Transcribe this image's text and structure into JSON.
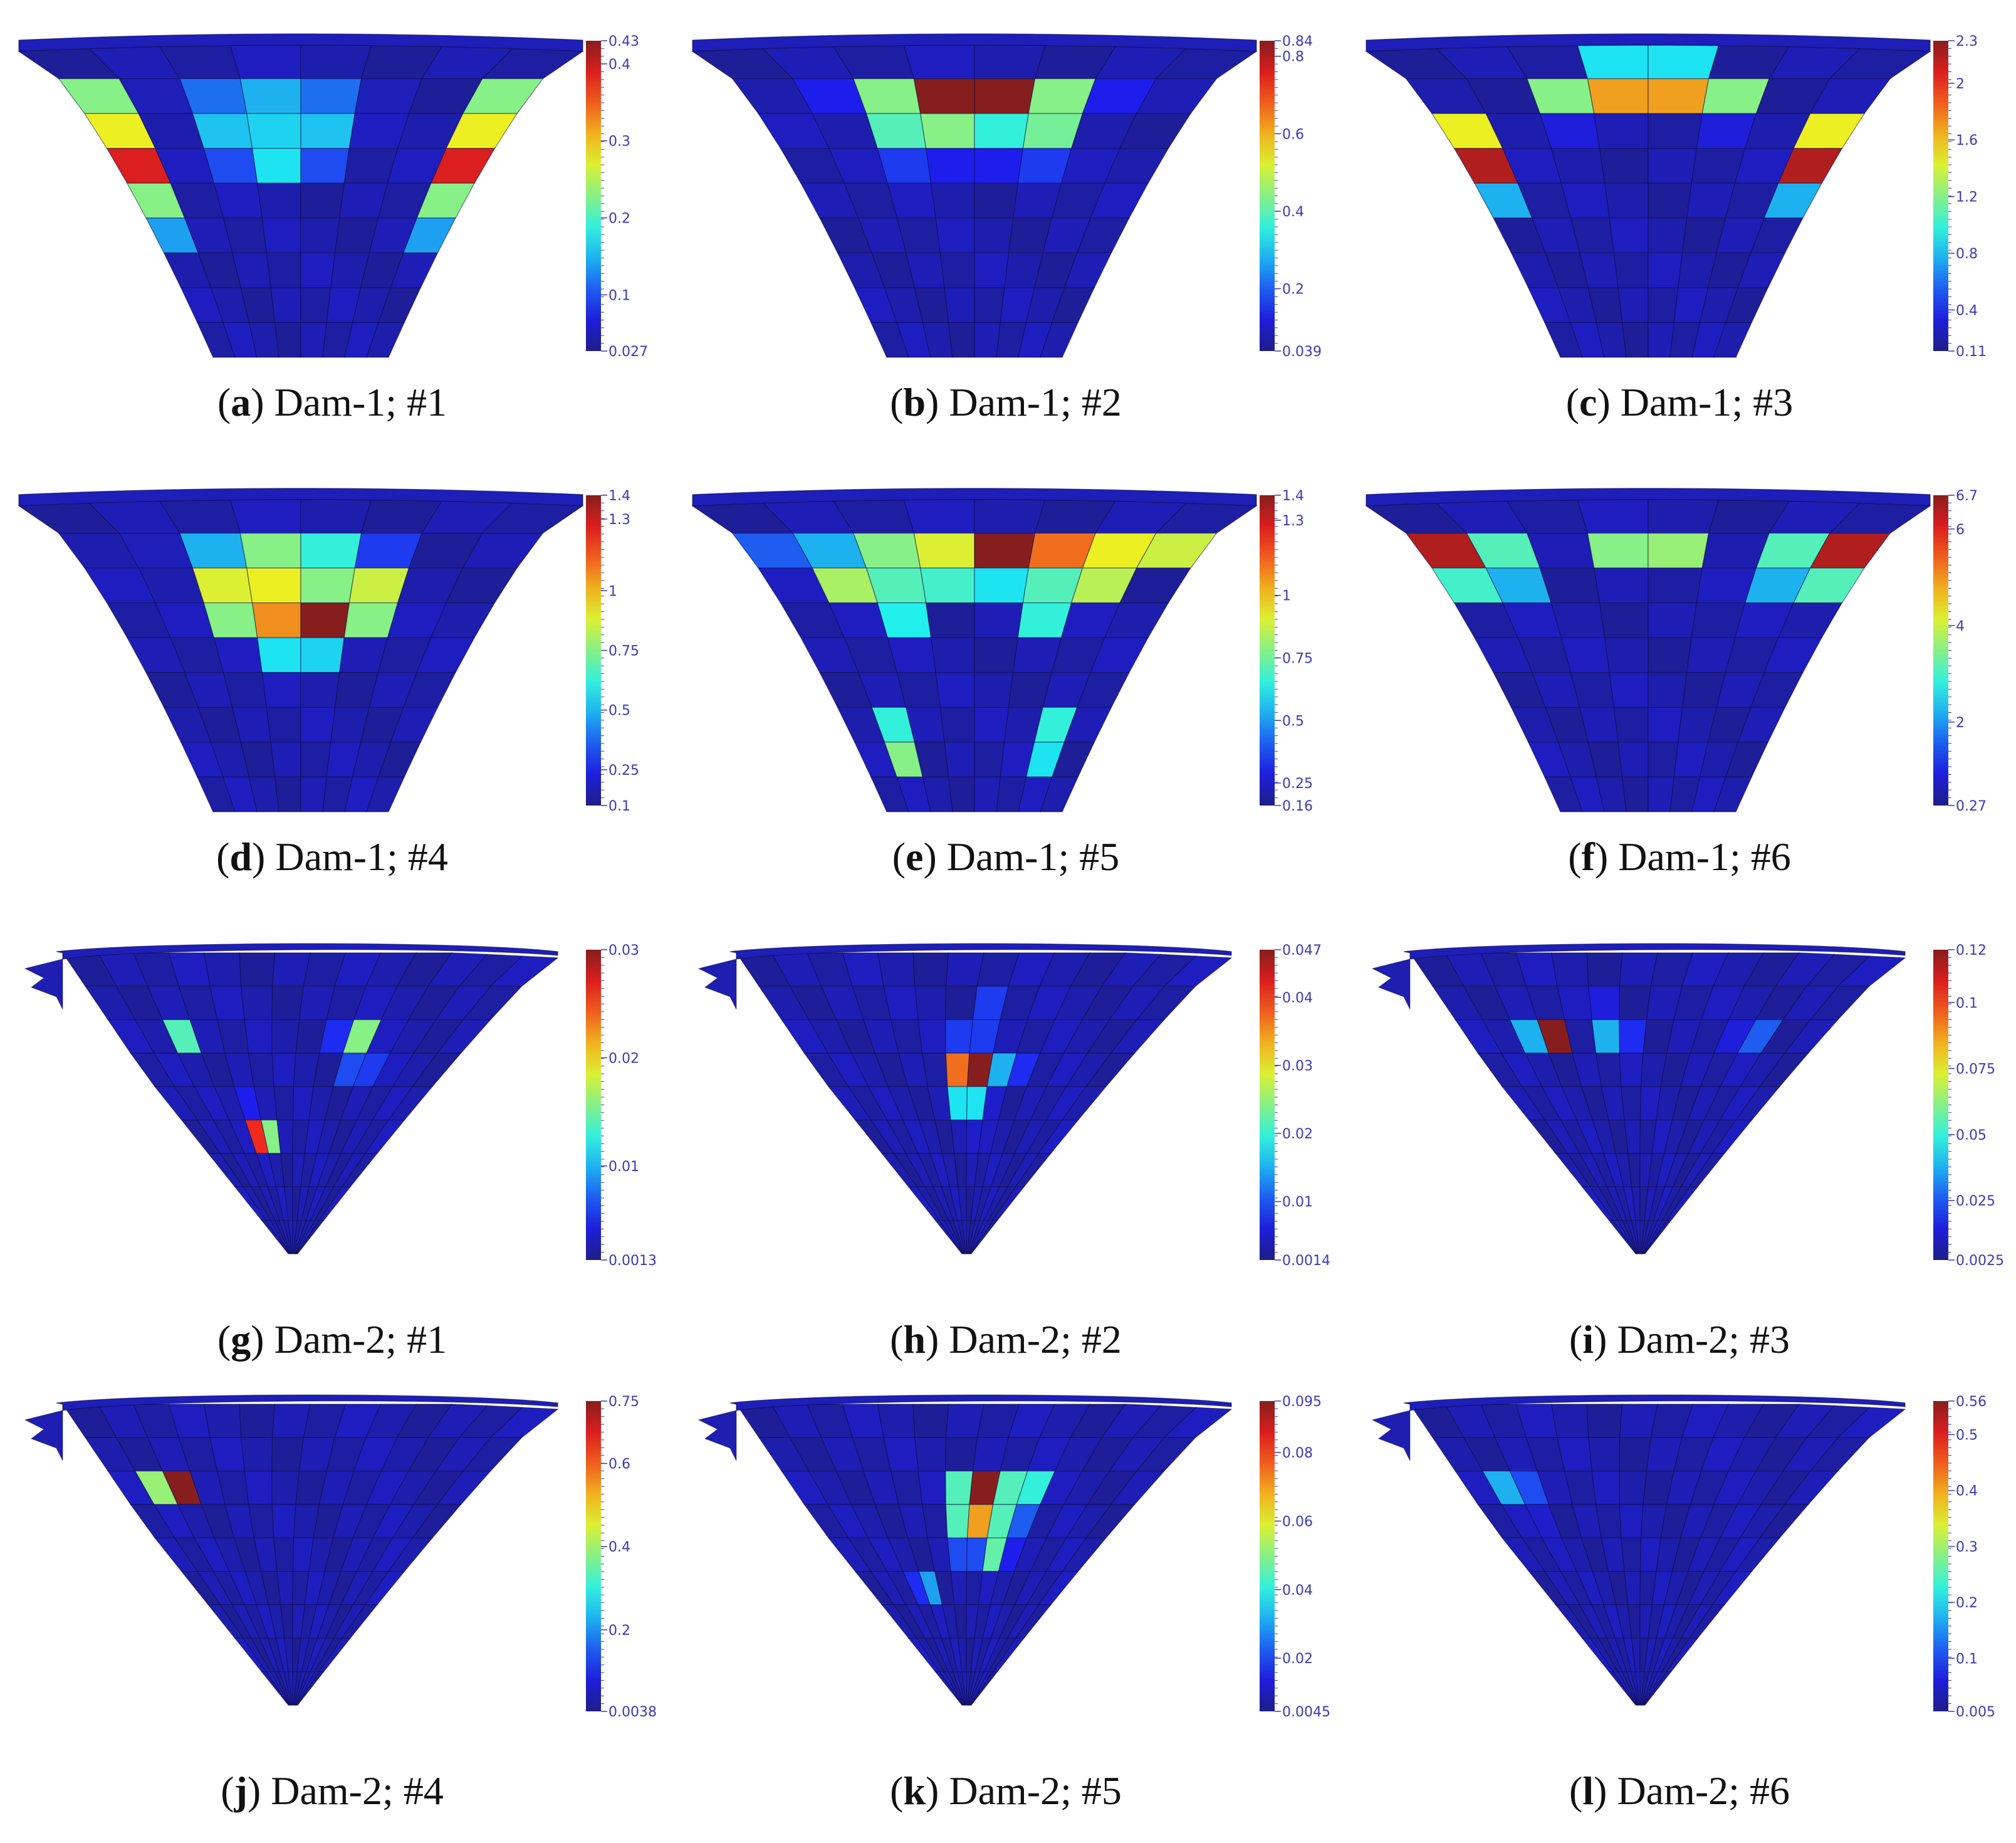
{
  "colors": {
    "blue": "#1010e0",
    "cyan": "#10d8e0",
    "green": "#10e010",
    "yellow": "#e0e010",
    "red": "#ee1010",
    "edge": "#0a0a40",
    "tick": "#3b3bb8",
    "background": "#ffffff"
  },
  "panels": [
    {
      "id": "a",
      "label": "a",
      "caption": "Dam-1; #1",
      "dam": 1,
      "colorbar": {
        "min": "0.027",
        "max": "0.43",
        "ticks": [
          "0.4",
          "0.3",
          "0.2",
          "0.1"
        ],
        "tick_values": [
          0.4,
          0.3,
          0.2,
          0.1
        ],
        "vmin": 0.027,
        "vmax": 0.43
      },
      "hot": [
        [
          1,
          1,
          0.06
        ],
        [
          1,
          2,
          0.22
        ],
        [
          1,
          3,
          0.3
        ],
        [
          1,
          4,
          0.22
        ],
        [
          1,
          5,
          0.06
        ],
        [
          2,
          2,
          0.32
        ],
        [
          2,
          3,
          0.34
        ],
        [
          2,
          4,
          0.32
        ],
        [
          3,
          2,
          0.18
        ],
        [
          3,
          3,
          0.36
        ],
        [
          3,
          4,
          0.18
        ],
        [
          1,
          0,
          0.5
        ],
        [
          1,
          7,
          0.5
        ],
        [
          2,
          0,
          0.62
        ],
        [
          2,
          7,
          0.62
        ],
        [
          3,
          0,
          0.9
        ],
        [
          3,
          7,
          0.9
        ],
        [
          4,
          0,
          0.5
        ],
        [
          4,
          7,
          0.5
        ],
        [
          5,
          0,
          0.28
        ],
        [
          5,
          7,
          0.28
        ]
      ]
    },
    {
      "id": "b",
      "label": "b",
      "caption": "Dam-1; #2",
      "dam": 1,
      "colorbar": {
        "min": "0.039",
        "max": "0.84",
        "ticks": [
          "0.8",
          "0.6",
          "0.4",
          "0.2"
        ],
        "tick_values": [
          0.8,
          0.6,
          0.4,
          0.2
        ],
        "vmin": 0.039,
        "vmax": 0.84
      },
      "hot": [
        [
          1,
          2,
          0.5
        ],
        [
          1,
          3,
          1.0
        ],
        [
          1,
          4,
          1.0
        ],
        [
          1,
          5,
          0.5
        ],
        [
          2,
          2,
          0.44
        ],
        [
          2,
          3,
          0.5
        ],
        [
          2,
          4,
          0.4
        ],
        [
          2,
          5,
          0.48
        ],
        [
          3,
          2,
          0.16
        ],
        [
          3,
          3,
          0.12
        ],
        [
          3,
          4,
          0.12
        ],
        [
          3,
          5,
          0.16
        ],
        [
          1,
          1,
          0.12
        ],
        [
          1,
          6,
          0.12
        ]
      ]
    },
    {
      "id": "c",
      "label": "c",
      "caption": "Dam-1; #3",
      "dam": 1,
      "colorbar": {
        "min": "0.11",
        "max": "2.3",
        "ticks": [
          "2",
          "1.6",
          "1.2",
          "0.8",
          "0.4"
        ],
        "tick_values": [
          2,
          1.6,
          1.2,
          0.8,
          0.4
        ],
        "vmin": 0.11,
        "vmax": 2.3
      },
      "hot": [
        [
          1,
          2,
          0.5
        ],
        [
          1,
          3,
          0.72
        ],
        [
          1,
          4,
          0.72
        ],
        [
          1,
          5,
          0.5
        ],
        [
          0,
          3,
          0.36
        ],
        [
          0,
          4,
          0.36
        ],
        [
          2,
          0,
          0.62
        ],
        [
          2,
          7,
          0.62
        ],
        [
          3,
          0,
          0.95
        ],
        [
          3,
          7,
          0.95
        ],
        [
          4,
          0,
          0.3
        ],
        [
          4,
          7,
          0.3
        ],
        [
          2,
          2,
          0.1
        ],
        [
          2,
          5,
          0.1
        ]
      ]
    },
    {
      "id": "d",
      "label": "d",
      "caption": "Dam-1; #4",
      "dam": 1,
      "colorbar": {
        "min": "0.1",
        "max": "1.4",
        "ticks": [
          "1.3",
          "1",
          "0.75",
          "0.5",
          "0.25"
        ],
        "tick_values": [
          1.3,
          1,
          0.75,
          0.5,
          0.25
        ],
        "vmin": 0.1,
        "vmax": 1.4
      },
      "hot": [
        [
          1,
          2,
          0.3
        ],
        [
          1,
          3,
          0.5
        ],
        [
          1,
          4,
          0.4
        ],
        [
          1,
          5,
          0.16
        ],
        [
          2,
          2,
          0.6
        ],
        [
          2,
          3,
          0.62
        ],
        [
          2,
          4,
          0.5
        ],
        [
          2,
          5,
          0.58
        ],
        [
          3,
          2,
          0.5
        ],
        [
          3,
          3,
          0.74
        ],
        [
          3,
          4,
          1.0
        ],
        [
          3,
          5,
          0.5
        ],
        [
          4,
          3,
          0.36
        ],
        [
          4,
          4,
          0.34
        ],
        [
          1,
          1,
          0.06
        ]
      ]
    },
    {
      "id": "e",
      "label": "e",
      "caption": "Dam-1; #5",
      "dam": 1,
      "colorbar": {
        "min": "0.16",
        "max": "1.4",
        "ticks": [
          "1.3",
          "1",
          "0.75",
          "0.5",
          "0.25"
        ],
        "tick_values": [
          1.3,
          1,
          0.75,
          0.5,
          0.25
        ],
        "vmin": 0.16,
        "vmax": 1.4
      },
      "hot": [
        [
          1,
          1,
          0.3
        ],
        [
          1,
          2,
          0.5
        ],
        [
          1,
          3,
          0.6
        ],
        [
          1,
          4,
          1.0
        ],
        [
          1,
          5,
          0.78
        ],
        [
          1,
          6,
          0.62
        ],
        [
          1,
          7,
          0.58
        ],
        [
          1,
          0,
          0.2
        ],
        [
          2,
          1,
          0.54
        ],
        [
          2,
          2,
          0.44
        ],
        [
          2,
          3,
          0.42
        ],
        [
          2,
          4,
          0.36
        ],
        [
          2,
          5,
          0.44
        ],
        [
          2,
          6,
          0.56
        ],
        [
          3,
          2,
          0.38
        ],
        [
          3,
          5,
          0.4
        ],
        [
          6,
          1,
          0.4
        ],
        [
          7,
          1,
          0.5
        ],
        [
          6,
          6,
          0.4
        ],
        [
          7,
          6,
          0.36
        ]
      ]
    },
    {
      "id": "f",
      "label": "f",
      "caption": "Dam-1; #6",
      "dam": 1,
      "colorbar": {
        "min": "0.27",
        "max": "6.7",
        "ticks": [
          "6",
          "4",
          "2"
        ],
        "tick_values": [
          6,
          4,
          2
        ],
        "vmin": 0.27,
        "vmax": 6.7
      },
      "hot": [
        [
          1,
          0,
          0.95
        ],
        [
          1,
          7,
          0.95
        ],
        [
          1,
          1,
          0.44
        ],
        [
          1,
          6,
          0.44
        ],
        [
          1,
          3,
          0.5
        ],
        [
          1,
          4,
          0.52
        ],
        [
          2,
          0,
          0.42
        ],
        [
          2,
          7,
          0.44
        ],
        [
          2,
          1,
          0.3
        ],
        [
          2,
          6,
          0.3
        ]
      ]
    },
    {
      "id": "g",
      "label": "g",
      "caption": "Dam-2; #1",
      "dam": 2,
      "colorbar": {
        "min": "0.0013",
        "max": "0.03",
        "ticks": [
          "0.02",
          "0.01"
        ],
        "tick_values": [
          0.02,
          0.01
        ],
        "vmin": 0.0013,
        "vmax": 0.03
      },
      "hot": [
        [
          2,
          2,
          0.44
        ],
        [
          2,
          9,
          0.5
        ],
        [
          3,
          9,
          0.18
        ],
        [
          3,
          10,
          0.16
        ],
        [
          4,
          4,
          0.12
        ],
        [
          5,
          4,
          0.86
        ],
        [
          5,
          5,
          0.5
        ],
        [
          2,
          8,
          0.14
        ]
      ]
    },
    {
      "id": "h",
      "label": "h",
      "caption": "Dam-2; #2",
      "dam": 2,
      "colorbar": {
        "min": "0.0014",
        "max": "0.047",
        "ticks": [
          "0.04",
          "0.03",
          "0.02",
          "0.01"
        ],
        "tick_values": [
          0.04,
          0.03,
          0.02,
          0.01
        ],
        "vmin": 0.0014,
        "vmax": 0.047
      },
      "hot": [
        [
          1,
          7,
          0.16
        ],
        [
          2,
          6,
          0.16
        ],
        [
          2,
          7,
          0.16
        ],
        [
          3,
          6,
          0.78
        ],
        [
          3,
          7,
          1.0
        ],
        [
          3,
          8,
          0.3
        ],
        [
          3,
          9,
          0.14
        ],
        [
          4,
          6,
          0.36
        ],
        [
          4,
          7,
          0.36
        ],
        [
          4,
          8,
          0.08
        ],
        [
          5,
          7,
          0.08
        ]
      ]
    },
    {
      "id": "i",
      "label": "i",
      "caption": "Dam-2; #3",
      "dam": 2,
      "colorbar": {
        "min": "0.0025",
        "max": "0.12",
        "ticks": [
          "0.1",
          "0.075",
          "0.05",
          "0.025"
        ],
        "tick_values": [
          0.1,
          0.075,
          0.05,
          0.025
        ],
        "vmin": 0.0025,
        "vmax": 0.12
      },
      "hot": [
        [
          2,
          2,
          0.3
        ],
        [
          2,
          3,
          1.0
        ],
        [
          2,
          5,
          0.3
        ],
        [
          2,
          6,
          0.14
        ],
        [
          2,
          11,
          0.2
        ],
        [
          2,
          10,
          0.1
        ],
        [
          1,
          5,
          0.1
        ]
      ]
    },
    {
      "id": "j",
      "label": "j",
      "caption": "Dam-2; #4",
      "dam": 2,
      "colorbar": {
        "min": "0.0038",
        "max": "0.75",
        "ticks": [
          "0.6",
          "0.4",
          "0.2"
        ],
        "tick_values": [
          0.6,
          0.4,
          0.2
        ],
        "vmin": 0.0038,
        "vmax": 0.75
      },
      "hot": [
        [
          2,
          1,
          0.52
        ],
        [
          2,
          2,
          1.0
        ]
      ]
    },
    {
      "id": "k",
      "label": "k",
      "caption": "Dam-2; #5",
      "dam": 2,
      "colorbar": {
        "min": "0.0045",
        "max": "0.095",
        "ticks": [
          "0.08",
          "0.06",
          "0.04",
          "0.02"
        ],
        "tick_values": [
          0.08,
          0.06,
          0.04,
          0.02
        ],
        "vmin": 0.0045,
        "vmax": 0.095
      },
      "hot": [
        [
          2,
          6,
          0.44
        ],
        [
          2,
          7,
          1.0
        ],
        [
          2,
          8,
          0.44
        ],
        [
          2,
          9,
          0.4
        ],
        [
          3,
          6,
          0.44
        ],
        [
          3,
          7,
          0.72
        ],
        [
          3,
          8,
          0.44
        ],
        [
          3,
          9,
          0.2
        ],
        [
          4,
          6,
          0.18
        ],
        [
          4,
          7,
          0.18
        ],
        [
          4,
          8,
          0.46
        ],
        [
          4,
          9,
          0.12
        ],
        [
          5,
          4,
          0.28
        ],
        [
          5,
          3,
          0.14
        ]
      ]
    },
    {
      "id": "l",
      "label": "l",
      "caption": "Dam-2; #6",
      "dam": 2,
      "colorbar": {
        "min": "0.005",
        "max": "0.56",
        "ticks": [
          "0.5",
          "0.4",
          "0.3",
          "0.2",
          "0.1"
        ],
        "tick_values": [
          0.5,
          0.4,
          0.3,
          0.2,
          0.1
        ],
        "vmin": 0.005,
        "vmax": 0.56
      },
      "hot": [
        [
          2,
          1,
          0.3
        ],
        [
          2,
          2,
          0.18
        ],
        [
          3,
          2,
          0.08
        ]
      ]
    }
  ]
}
